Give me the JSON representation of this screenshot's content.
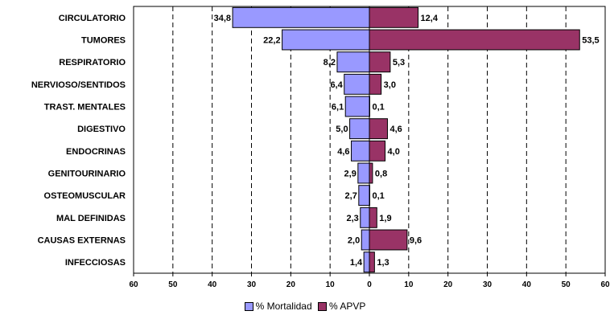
{
  "chart_data": {
    "type": "bar",
    "orientation": "horizontal-butterfly",
    "categories": [
      "CIRCULATORIO",
      "TUMORES",
      "RESPIRATORIO",
      "NERVIOSO/SENTIDOS",
      "TRAST. MENTALES",
      "DIGESTIVO",
      "ENDOCRINAS",
      "GENITOURINARIO",
      "OSTEOMUSCULAR",
      "MAL DEFINIDAS",
      "CAUSAS EXTERNAS",
      "INFECCIOSAS"
    ],
    "series": [
      {
        "name": "% Mortalidad",
        "side": "left",
        "color": "#9999ff",
        "values": [
          34.8,
          22.2,
          8.2,
          6.4,
          6.1,
          5.0,
          4.6,
          2.9,
          2.7,
          2.3,
          2.0,
          1.4
        ],
        "labels": [
          "34,8",
          "22,2",
          "8,2",
          "6,4",
          "6,1",
          "5,0",
          "4,6",
          "2,9",
          "2,7",
          "2,3",
          "2,0",
          "1,4"
        ]
      },
      {
        "name": "% APVP",
        "side": "right",
        "color": "#993366",
        "values": [
          12.4,
          53.5,
          5.3,
          3.0,
          0.1,
          4.6,
          4.0,
          0.8,
          0.1,
          1.9,
          9.6,
          1.3
        ],
        "labels": [
          "12,4",
          "53,5",
          "5,3",
          "3,0",
          "0,1",
          "4,6",
          "4,0",
          "0,8",
          "0,1",
          "1,9",
          "9,6",
          "1,3"
        ]
      }
    ],
    "xlim": [
      -60,
      60
    ],
    "ticks": [
      -60,
      -50,
      -40,
      -30,
      -20,
      -10,
      0,
      10,
      20,
      30,
      40,
      50,
      60
    ],
    "tick_labels": [
      "60",
      "50",
      "40",
      "30",
      "20",
      "10",
      "0",
      "10",
      "20",
      "30",
      "40",
      "50",
      "60"
    ],
    "grid": "vertical-dashed",
    "legend_position": "bottom"
  }
}
